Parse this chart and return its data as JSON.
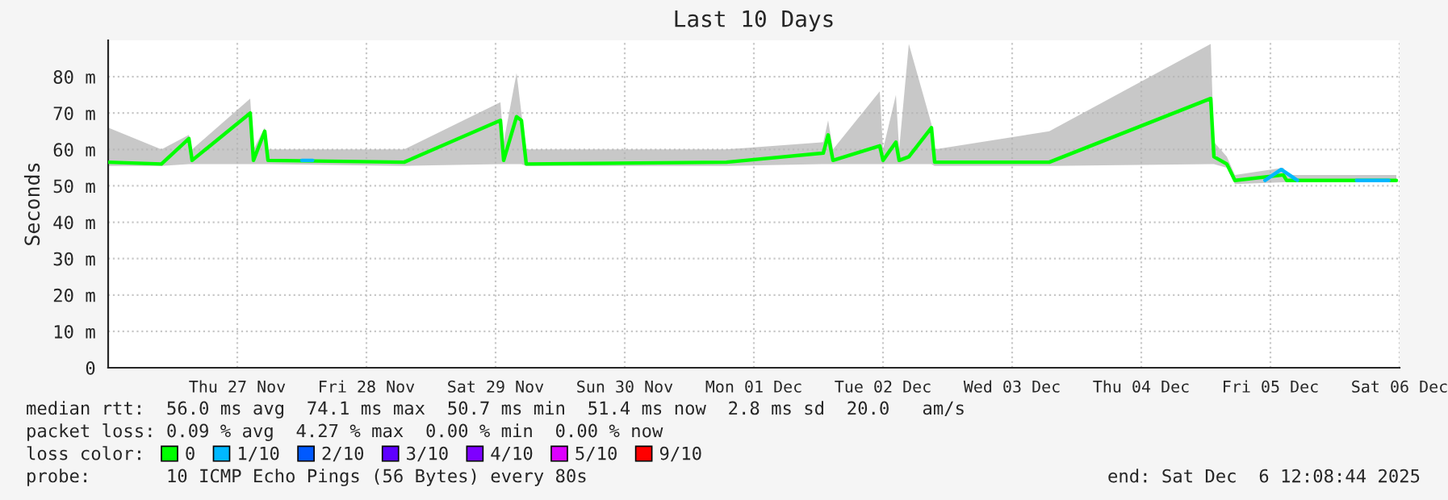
{
  "chart_data": {
    "type": "line",
    "title": "Last 10 Days",
    "ylabel": "Seconds",
    "xlim": [
      "2025-11-26T12:00",
      "2025-12-06T12:00"
    ],
    "xticks": [
      {
        "value": "2025-11-27T12:00",
        "label": "Thu 27 Nov"
      },
      {
        "value": "2025-11-28T12:00",
        "label": "Fri 28 Nov"
      },
      {
        "value": "2025-11-29T12:00",
        "label": "Sat 29 Nov"
      },
      {
        "value": "2025-11-30T12:00",
        "label": "Sun 30 Nov"
      },
      {
        "value": "2025-12-01T12:00",
        "label": "Mon 01 Dec"
      },
      {
        "value": "2025-12-02T12:00",
        "label": "Tue 02 Dec"
      },
      {
        "value": "2025-12-03T12:00",
        "label": "Wed 03 Dec"
      },
      {
        "value": "2025-12-04T12:00",
        "label": "Thu 04 Dec"
      },
      {
        "value": "2025-12-05T12:00",
        "label": "Fri 05 Dec"
      },
      {
        "value": "2025-12-06T12:00",
        "label": "Sat 06 Dec"
      }
    ],
    "ylim": [
      0,
      90
    ],
    "yticks": [
      0,
      {
        "value": 10,
        "label": "10 m"
      },
      {
        "value": 20,
        "label": "20 m"
      },
      {
        "value": 30,
        "label": "30 m"
      },
      {
        "value": 40,
        "label": "40 m"
      },
      {
        "value": 50,
        "label": "50 m"
      },
      {
        "value": 60,
        "label": "60 m"
      },
      {
        "value": 70,
        "label": "70 m"
      },
      {
        "value": 80,
        "label": "80 m"
      }
    ],
    "grid": true,
    "legend": "bottom",
    "marker": "none",
    "line_style": "solid",
    "series": [
      {
        "name": "0",
        "color": "#00ff00",
        "x": [
          "2025-11-26T12:00",
          "2025-11-26T21:54",
          "2025-11-27T03:00",
          "2025-11-27T03:36",
          "2025-11-27T14:24",
          "2025-11-27T15:00",
          "2025-11-27T17:06",
          "2025-11-27T17:42",
          "2025-11-28T19:00",
          "2025-11-29T12:54",
          "2025-11-29T13:30",
          "2025-11-29T15:54",
          "2025-11-29T16:48",
          "2025-11-29T17:42",
          "2025-12-01T06:54",
          "2025-12-02T00:54",
          "2025-12-02T01:48",
          "2025-12-02T02:42",
          "2025-12-02T11:24",
          "2025-12-02T12:00",
          "2025-12-02T14:24",
          "2025-12-02T15:00",
          "2025-12-02T16:48",
          "2025-12-02T21:00",
          "2025-12-02T21:36",
          "2025-12-03T18:54",
          "2025-12-05T00:54",
          "2025-12-05T01:30",
          "2025-12-05T03:54",
          "2025-12-05T05:24",
          "2025-12-05T14:24",
          "2025-12-05T15:00",
          "2025-12-06T11:24"
        ],
        "values": [
          56.5,
          56,
          63,
          57,
          70,
          57,
          65,
          57,
          56.5,
          68,
          57,
          69,
          68,
          56,
          56.5,
          59,
          64,
          57,
          61,
          57,
          62,
          57,
          58,
          66,
          56.5,
          56.5,
          74,
          58,
          56,
          51.5,
          53,
          51.5,
          51.5
        ],
        "lower": [
          55.5,
          55.5,
          56,
          56,
          56,
          56,
          56,
          56,
          55.5,
          56,
          56,
          56,
          56,
          55.5,
          55.5,
          56,
          56,
          56,
          56,
          56,
          56,
          56,
          56,
          56,
          55.5,
          55.5,
          56,
          56,
          55,
          50.5,
          51,
          51,
          51
        ],
        "upper": [
          66,
          60,
          64,
          60,
          74,
          60,
          66,
          60,
          60,
          73,
          62,
          81,
          70,
          60,
          60,
          62,
          68,
          60,
          76,
          60,
          75,
          60,
          89,
          67,
          60,
          65,
          89,
          62,
          58,
          53,
          55,
          53,
          53
        ]
      },
      {
        "name": "1/10",
        "color": "#00b8ff",
        "x": [
          "2025-11-28T00:00",
          "2025-11-28T02:00",
          "2025-12-01T00:00",
          "2025-12-05T11:00",
          "2025-12-05T14:00",
          "2025-12-05T17:00",
          "2025-12-06T00:00",
          "2025-12-06T04:00",
          "2025-12-06T10:00"
        ],
        "values": [
          57,
          57,
          null,
          51.5,
          54.5,
          51.5,
          null,
          51.5,
          51.5
        ]
      },
      {
        "name": "2/10",
        "color": "#0059ff"
      },
      {
        "name": "3/10",
        "color": "#5e00ff"
      },
      {
        "name": "4/10",
        "color": "#7e00ff"
      },
      {
        "name": "5/10",
        "color": "#dd00ff"
      },
      {
        "name": "9/10",
        "color": "#ff0000"
      }
    ],
    "annotations": [
      "median rtt:  56.0 ms avg  74.1 ms max  50.7 ms min  51.4 ms now  2.8 ms sd  20.0   am/s",
      "packet loss: 0.09 % avg  4.27 % max  0.00 % min  0.00 % now",
      "loss color:",
      "probe:       10 ICMP Echo Pings (56 Bytes) every 80s",
      "end: Sat Dec  6 12:08:44 2025"
    ]
  }
}
